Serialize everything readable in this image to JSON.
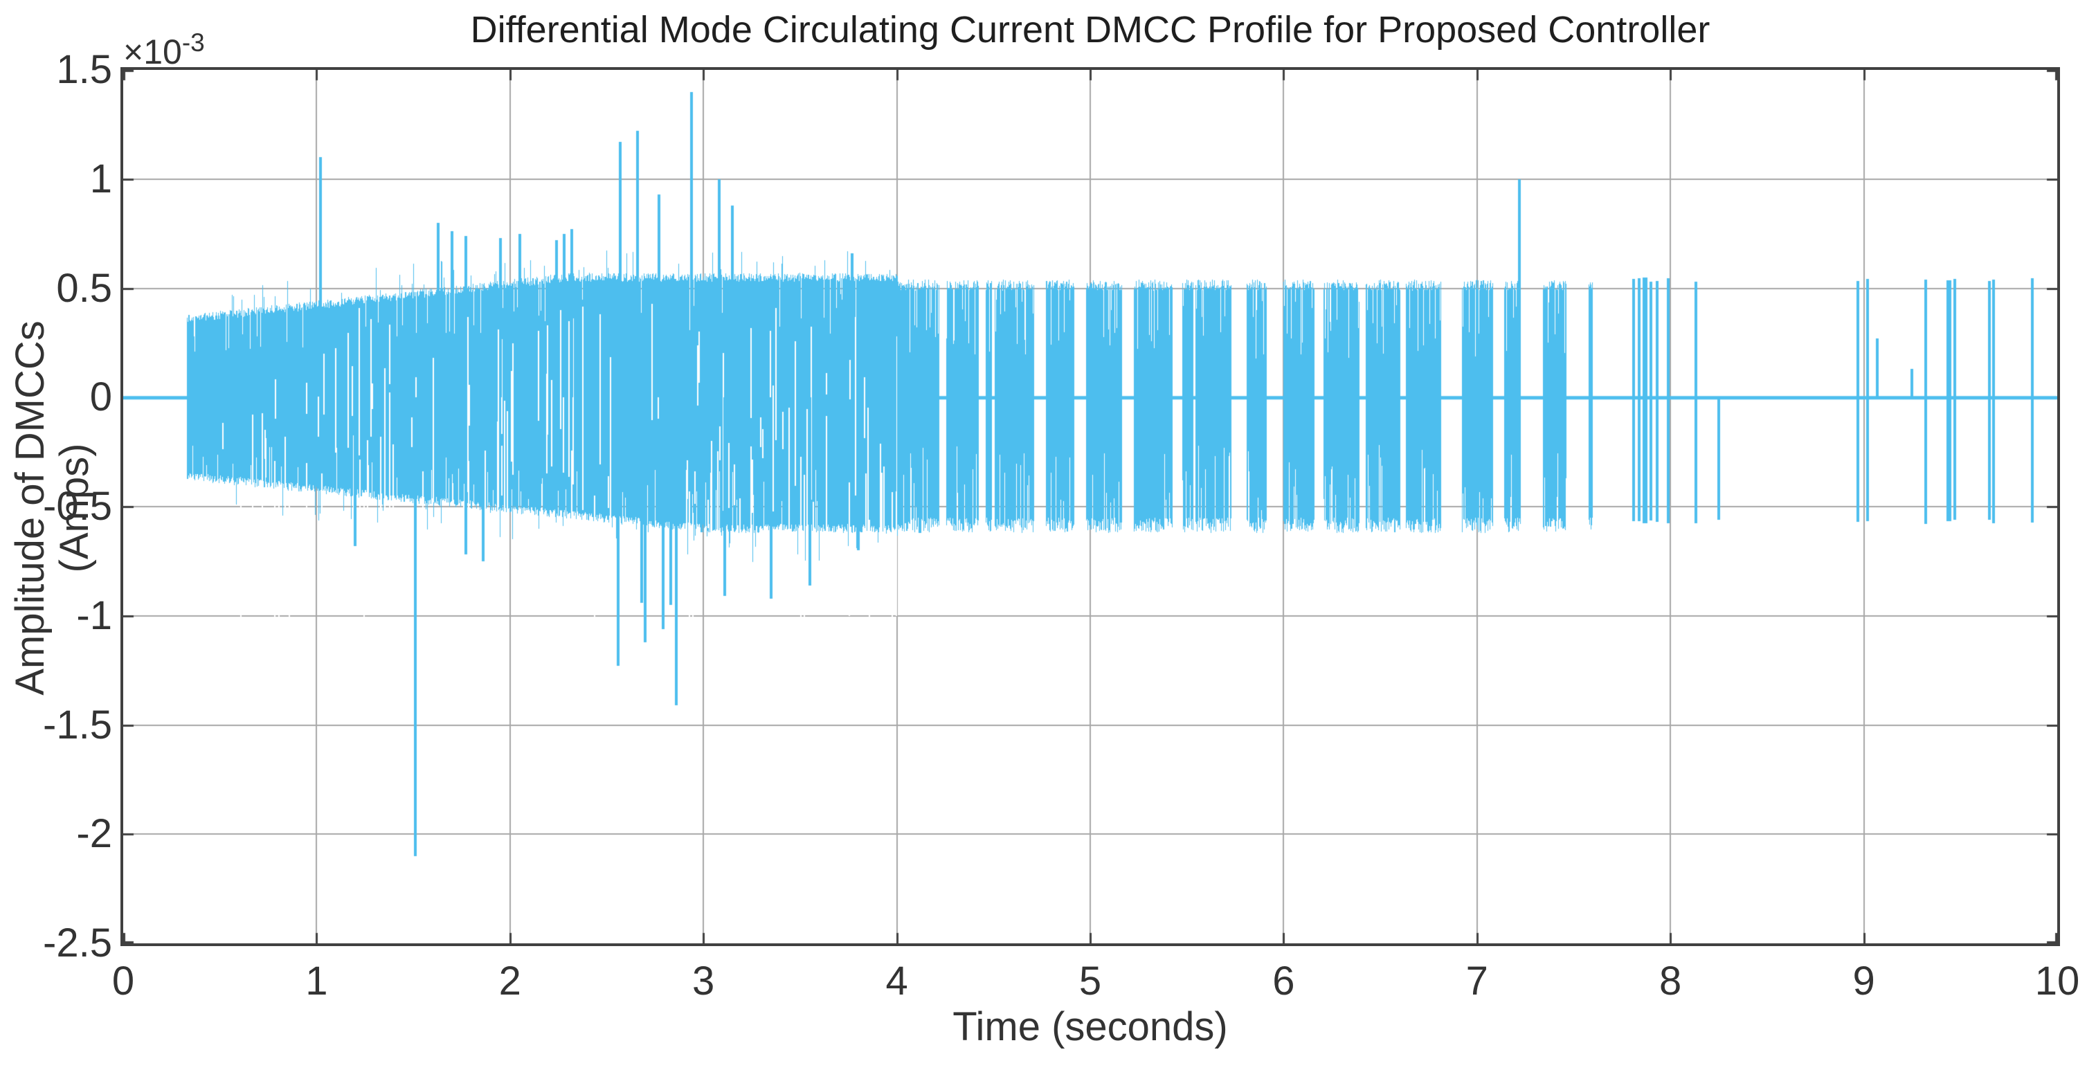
{
  "chart_data": {
    "type": "line",
    "title": "Differential Mode Circulating Current DMCC Profile for Proposed Controller",
    "xlabel": "Time (seconds)",
    "ylabel": "Amplitude of DMCCs (Amps)",
    "y_multiplier": {
      "base": "×10",
      "exponent": "-3"
    },
    "xlim": [
      0,
      10
    ],
    "ylim_e3": [
      -2.5,
      1.5
    ],
    "x_ticks": [
      0,
      1,
      2,
      3,
      4,
      5,
      6,
      7,
      8,
      9,
      10
    ],
    "y_ticks_e3": [
      1.5,
      1,
      0.5,
      0,
      -0.5,
      -1,
      -1.5,
      -2,
      -2.5
    ],
    "grid": true,
    "legend_visible": false,
    "line_color": "#4DBEEE",
    "axis_color": "#404040",
    "grid_color": "#a8a8a8",
    "text_color": "#333333",
    "signal": {
      "units": "1e-3 Amps (all amplitudes below are multiples of 1e-3)",
      "baseline": 0,
      "flat_segment": {
        "t0": 0,
        "t1": 0.33
      },
      "dense_band": {
        "t0": 0.33,
        "t1": 4.0,
        "upper_start": 0.36,
        "upper_max": 0.55,
        "upper_ramp_end": 2.3,
        "lower_start": -0.36,
        "lower_min": -0.6,
        "lower_ramp_end": 3.0
      },
      "burst_band": {
        "t0": 4.0,
        "t1": 7.6,
        "upper": 0.52,
        "lower": -0.55
      },
      "sparse_tail": {
        "t0": 7.6,
        "t1": 10,
        "default_up": 0.54,
        "default_down": -0.56,
        "events": [
          {
            "t": 7.81
          },
          {
            "t": 7.84
          },
          {
            "t": 7.87,
            "w": 7
          },
          {
            "t": 7.9
          },
          {
            "t": 7.93
          },
          {
            "t": 7.99
          },
          {
            "t": 8.13
          },
          {
            "t": 8.25,
            "up": 0
          },
          {
            "t": 8.97
          },
          {
            "t": 9.02
          },
          {
            "t": 9.07,
            "up": 0.27,
            "down": 0
          },
          {
            "t": 9.25,
            "up": 0.13,
            "down": 0
          },
          {
            "t": 9.32
          },
          {
            "t": 9.44,
            "w": 7
          },
          {
            "t": 9.47
          },
          {
            "t": 9.65
          },
          {
            "t": 9.67
          },
          {
            "t": 9.87
          }
        ]
      },
      "spikes_up": [
        [
          1.02,
          1.1
        ],
        [
          1.63,
          0.8
        ],
        [
          1.7,
          0.76
        ],
        [
          1.77,
          0.74
        ],
        [
          1.95,
          0.73
        ],
        [
          2.05,
          0.75
        ],
        [
          2.24,
          0.72
        ],
        [
          2.28,
          0.75
        ],
        [
          2.32,
          0.77
        ],
        [
          2.57,
          1.17
        ],
        [
          2.66,
          1.22
        ],
        [
          2.77,
          0.93
        ],
        [
          2.94,
          1.4
        ],
        [
          3.08,
          1.0
        ],
        [
          3.15,
          0.88
        ],
        [
          3.77,
          0.66
        ],
        [
          7.22,
          1.0
        ]
      ],
      "spikes_down": [
        [
          1.2,
          -0.68
        ],
        [
          1.51,
          -2.1
        ],
        [
          1.77,
          -0.72
        ],
        [
          1.86,
          -0.75
        ],
        [
          2.56,
          -1.23
        ],
        [
          2.68,
          -0.94
        ],
        [
          2.7,
          -1.12
        ],
        [
          2.79,
          -1.06
        ],
        [
          2.83,
          -0.95
        ],
        [
          2.86,
          -1.41
        ],
        [
          3.11,
          -0.91
        ],
        [
          3.35,
          -0.92
        ],
        [
          3.55,
          -0.86
        ],
        [
          3.8,
          -0.7
        ],
        [
          4.12,
          -0.62
        ]
      ]
    }
  }
}
